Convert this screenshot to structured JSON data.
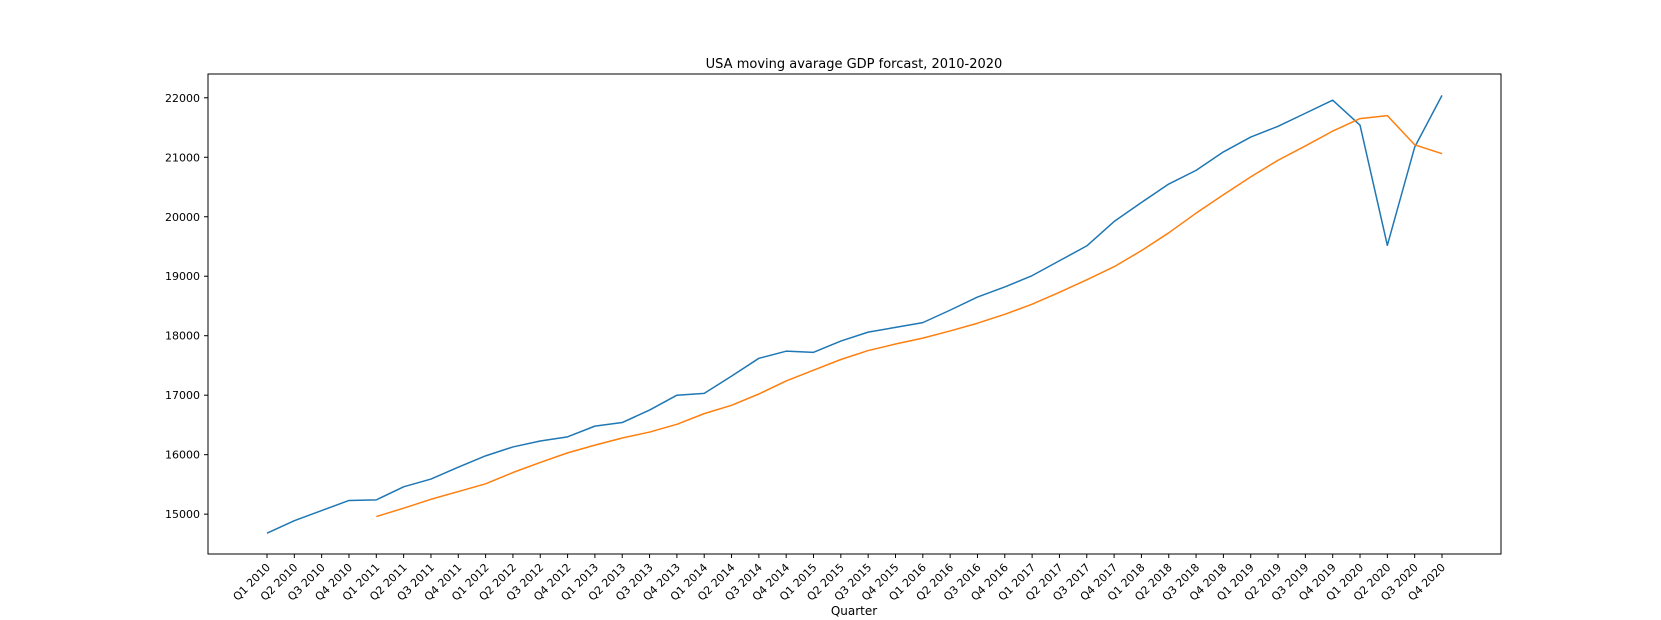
{
  "chart_data": {
    "type": "line",
    "title": "USA moving avarage GDP forcast, 2010-2020",
    "xlabel": "Quarter",
    "ylabel": "",
    "categories": [
      "Q1 2010",
      "Q2 2010",
      "Q3 2010",
      "Q4 2010",
      "Q1 2011",
      "Q2 2011",
      "Q3 2011",
      "Q4 2011",
      "Q1 2012",
      "Q2 2012",
      "Q3 2012",
      "Q4 2012",
      "Q1 2013",
      "Q2 2013",
      "Q3 2013",
      "Q4 2013",
      "Q1 2014",
      "Q2 2014",
      "Q3 2014",
      "Q4 2014",
      "Q1 2015",
      "Q2 2015",
      "Q3 2015",
      "Q4 2015",
      "Q1 2016",
      "Q2 2016",
      "Q3 2016",
      "Q4 2016",
      "Q1 2017",
      "Q2 2017",
      "Q3 2017",
      "Q4 2017",
      "Q1 2018",
      "Q2 2018",
      "Q3 2018",
      "Q4 2018",
      "Q1 2019",
      "Q2 2019",
      "Q3 2019",
      "Q4 2019",
      "Q1 2020",
      "Q2 2020",
      "Q3 2020",
      "Q4 2020"
    ],
    "ylim": [
      14330,
      22400
    ],
    "yticks": [
      15000,
      16000,
      17000,
      18000,
      19000,
      20000,
      21000,
      22000
    ],
    "grid": false,
    "legend": false,
    "series": [
      {
        "color": "#1f77b4",
        "values": [
          14680,
          14890,
          15060,
          15230,
          15240,
          15460,
          15590,
          15790,
          15980,
          16130,
          16230,
          16300,
          16480,
          16540,
          16750,
          17000,
          17030,
          17320,
          17620,
          17740,
          17720,
          17910,
          18060,
          18140,
          18220,
          18430,
          18650,
          18820,
          19010,
          19260,
          19510,
          19920,
          20240,
          20550,
          20780,
          21090,
          21340,
          21520,
          21740,
          21960,
          21540,
          19520,
          21170,
          22040
        ]
      },
      {
        "color": "#ff7f0e",
        "values": [
          null,
          null,
          null,
          null,
          14960,
          15100,
          15250,
          15380,
          15510,
          15700,
          15870,
          16030,
          16160,
          16280,
          16380,
          16510,
          16690,
          16830,
          17020,
          17240,
          17420,
          17600,
          17750,
          17860,
          17960,
          18080,
          18210,
          18360,
          18530,
          18730,
          18940,
          19160,
          19430,
          19730,
          20060,
          20370,
          20670,
          20950,
          21190,
          21440,
          21650,
          21700,
          21210,
          21060
        ]
      }
    ]
  }
}
